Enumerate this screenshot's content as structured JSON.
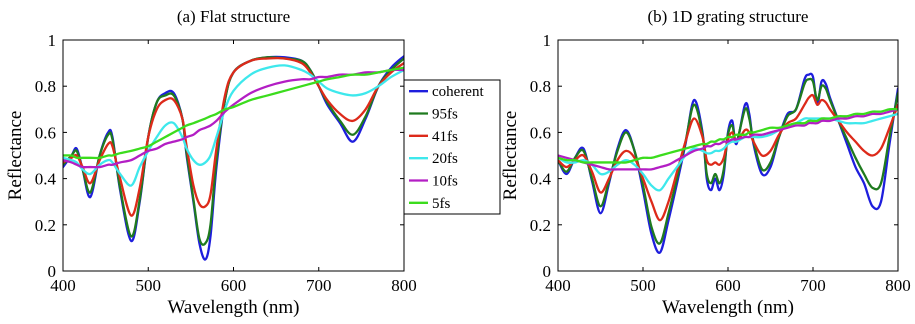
{
  "chart_data": [
    {
      "type": "line",
      "title": "(a) Flat structure",
      "xlabel": "Wavelength (nm)",
      "ylabel": "Reflectance",
      "xlim": [
        400,
        800
      ],
      "ylim": [
        0,
        1
      ],
      "xticks": [
        400,
        500,
        600,
        700,
        800
      ],
      "yticks": [
        0,
        0.2,
        0.4,
        0.6,
        0.8,
        1
      ],
      "ytick_labels": [
        "0",
        "0.2",
        "0.4",
        "0.6",
        "0.8",
        "1"
      ],
      "grid": false,
      "legend": "center-right",
      "x": [
        400,
        410,
        416,
        423,
        432,
        443,
        453,
        458,
        467,
        480,
        490,
        500,
        510,
        520,
        530,
        540,
        545,
        553,
        560,
        567,
        573,
        580,
        590,
        600,
        620,
        640,
        660,
        680,
        690,
        700,
        710,
        725,
        740,
        755,
        770,
        785,
        800
      ],
      "series": [
        {
          "name": "coherent",
          "color": "#1e1edd",
          "values": [
            0.45,
            0.5,
            0.53,
            0.44,
            0.32,
            0.5,
            0.6,
            0.58,
            0.35,
            0.13,
            0.3,
            0.58,
            0.73,
            0.77,
            0.77,
            0.66,
            0.5,
            0.3,
            0.12,
            0.05,
            0.15,
            0.45,
            0.74,
            0.86,
            0.91,
            0.925,
            0.925,
            0.91,
            0.87,
            0.8,
            0.72,
            0.64,
            0.56,
            0.66,
            0.8,
            0.88,
            0.93
          ]
        },
        {
          "name": "95fs",
          "color": "#1f7a1f",
          "values": [
            0.46,
            0.5,
            0.52,
            0.44,
            0.34,
            0.5,
            0.59,
            0.57,
            0.36,
            0.15,
            0.31,
            0.58,
            0.73,
            0.76,
            0.76,
            0.66,
            0.51,
            0.31,
            0.14,
            0.12,
            0.2,
            0.48,
            0.74,
            0.86,
            0.91,
            0.925,
            0.92,
            0.91,
            0.87,
            0.8,
            0.73,
            0.65,
            0.59,
            0.67,
            0.8,
            0.87,
            0.92
          ]
        },
        {
          "name": "41fs",
          "color": "#dd2a1a",
          "values": [
            0.47,
            0.49,
            0.5,
            0.45,
            0.38,
            0.48,
            0.55,
            0.54,
            0.4,
            0.24,
            0.36,
            0.58,
            0.7,
            0.74,
            0.74,
            0.66,
            0.54,
            0.37,
            0.29,
            0.28,
            0.33,
            0.53,
            0.76,
            0.86,
            0.91,
            0.92,
            0.92,
            0.9,
            0.86,
            0.8,
            0.74,
            0.68,
            0.65,
            0.7,
            0.8,
            0.86,
            0.9
          ]
        },
        {
          "name": "20fs",
          "color": "#3ee8ec",
          "values": [
            0.49,
            0.48,
            0.47,
            0.44,
            0.42,
            0.46,
            0.48,
            0.47,
            0.42,
            0.37,
            0.45,
            0.52,
            0.58,
            0.63,
            0.64,
            0.58,
            0.53,
            0.48,
            0.46,
            0.47,
            0.5,
            0.58,
            0.7,
            0.78,
            0.85,
            0.88,
            0.89,
            0.87,
            0.85,
            0.82,
            0.79,
            0.77,
            0.76,
            0.77,
            0.8,
            0.84,
            0.87
          ]
        },
        {
          "name": "10fs",
          "color": "#b31ec4",
          "values": [
            0.48,
            0.47,
            0.46,
            0.45,
            0.45,
            0.45,
            0.46,
            0.46,
            0.47,
            0.48,
            0.5,
            0.52,
            0.53,
            0.55,
            0.56,
            0.57,
            0.58,
            0.59,
            0.61,
            0.62,
            0.63,
            0.65,
            0.69,
            0.72,
            0.77,
            0.8,
            0.82,
            0.83,
            0.83,
            0.84,
            0.84,
            0.85,
            0.85,
            0.86,
            0.86,
            0.87,
            0.87
          ]
        },
        {
          "name": "5fs",
          "color": "#3bdc1d",
          "values": [
            0.5,
            0.5,
            0.49,
            0.49,
            0.49,
            0.49,
            0.5,
            0.5,
            0.51,
            0.52,
            0.53,
            0.54,
            0.56,
            0.58,
            0.6,
            0.62,
            0.63,
            0.64,
            0.65,
            0.66,
            0.67,
            0.68,
            0.7,
            0.71,
            0.74,
            0.76,
            0.78,
            0.8,
            0.81,
            0.82,
            0.83,
            0.84,
            0.85,
            0.85,
            0.86,
            0.87,
            0.88
          ]
        }
      ]
    },
    {
      "type": "line",
      "title": "(b) 1D grating structure",
      "xlabel": "Wavelength (nm)",
      "ylabel": "Reflectance",
      "xlim": [
        400,
        800
      ],
      "ylim": [
        0,
        1
      ],
      "xticks": [
        400,
        500,
        600,
        700,
        800
      ],
      "yticks": [
        0,
        0.2,
        0.4,
        0.6,
        0.8,
        1
      ],
      "ytick_labels": [
        "0",
        "0.2",
        "0.4",
        "0.6",
        "0.8",
        "1"
      ],
      "grid": false,
      "x": [
        400,
        410,
        420,
        430,
        440,
        450,
        460,
        470,
        480,
        490,
        500,
        510,
        520,
        530,
        540,
        550,
        560,
        570,
        575,
        580,
        585,
        590,
        595,
        600,
        605,
        610,
        620,
        625,
        630,
        640,
        650,
        660,
        670,
        680,
        690,
        695,
        700,
        705,
        710,
        715,
        720,
        730,
        740,
        750,
        760,
        770,
        780,
        790,
        800
      ],
      "series": [
        {
          "name": "coherent",
          "color": "#1e1edd",
          "values": [
            0.48,
            0.42,
            0.49,
            0.53,
            0.39,
            0.25,
            0.38,
            0.53,
            0.61,
            0.52,
            0.35,
            0.16,
            0.08,
            0.22,
            0.38,
            0.55,
            0.74,
            0.6,
            0.4,
            0.35,
            0.4,
            0.35,
            0.42,
            0.6,
            0.65,
            0.55,
            0.72,
            0.68,
            0.55,
            0.42,
            0.45,
            0.58,
            0.68,
            0.7,
            0.83,
            0.85,
            0.84,
            0.72,
            0.82,
            0.81,
            0.75,
            0.65,
            0.55,
            0.45,
            0.38,
            0.28,
            0.3,
            0.55,
            0.79
          ]
        },
        {
          "name": "95fs",
          "color": "#1f7a1f",
          "values": [
            0.48,
            0.43,
            0.49,
            0.52,
            0.4,
            0.28,
            0.39,
            0.52,
            0.6,
            0.52,
            0.37,
            0.19,
            0.12,
            0.25,
            0.4,
            0.56,
            0.72,
            0.59,
            0.42,
            0.38,
            0.42,
            0.38,
            0.44,
            0.59,
            0.63,
            0.56,
            0.7,
            0.66,
            0.56,
            0.44,
            0.47,
            0.58,
            0.67,
            0.7,
            0.81,
            0.83,
            0.82,
            0.74,
            0.8,
            0.79,
            0.74,
            0.65,
            0.57,
            0.49,
            0.42,
            0.36,
            0.38,
            0.58,
            0.77
          ]
        },
        {
          "name": "41fs",
          "color": "#dd2a1a",
          "values": [
            0.48,
            0.45,
            0.48,
            0.5,
            0.43,
            0.34,
            0.4,
            0.48,
            0.52,
            0.49,
            0.4,
            0.3,
            0.22,
            0.3,
            0.43,
            0.56,
            0.66,
            0.58,
            0.48,
            0.46,
            0.47,
            0.46,
            0.49,
            0.57,
            0.6,
            0.56,
            0.61,
            0.6,
            0.56,
            0.5,
            0.52,
            0.59,
            0.64,
            0.66,
            0.72,
            0.75,
            0.76,
            0.72,
            0.74,
            0.73,
            0.7,
            0.65,
            0.6,
            0.56,
            0.52,
            0.5,
            0.53,
            0.62,
            0.72
          ]
        },
        {
          "name": "20fs",
          "color": "#3ee8ec",
          "values": [
            0.49,
            0.47,
            0.47,
            0.48,
            0.46,
            0.42,
            0.43,
            0.46,
            0.48,
            0.46,
            0.42,
            0.37,
            0.35,
            0.4,
            0.45,
            0.5,
            0.53,
            0.52,
            0.51,
            0.51,
            0.52,
            0.52,
            0.53,
            0.55,
            0.56,
            0.56,
            0.58,
            0.58,
            0.58,
            0.58,
            0.59,
            0.61,
            0.63,
            0.64,
            0.66,
            0.66,
            0.66,
            0.66,
            0.66,
            0.66,
            0.66,
            0.65,
            0.64,
            0.64,
            0.64,
            0.65,
            0.66,
            0.67,
            0.68
          ]
        },
        {
          "name": "10fs",
          "color": "#b31ec4",
          "values": [
            0.5,
            0.49,
            0.48,
            0.47,
            0.46,
            0.45,
            0.44,
            0.44,
            0.44,
            0.44,
            0.44,
            0.44,
            0.45,
            0.46,
            0.48,
            0.5,
            0.52,
            0.53,
            0.54,
            0.54,
            0.55,
            0.55,
            0.56,
            0.56,
            0.57,
            0.57,
            0.58,
            0.58,
            0.59,
            0.59,
            0.6,
            0.61,
            0.62,
            0.63,
            0.63,
            0.64,
            0.64,
            0.64,
            0.65,
            0.65,
            0.65,
            0.66,
            0.66,
            0.67,
            0.67,
            0.68,
            0.68,
            0.69,
            0.7
          ]
        },
        {
          "name": "5fs",
          "color": "#3bdc1d",
          "values": [
            0.49,
            0.48,
            0.48,
            0.47,
            0.47,
            0.47,
            0.47,
            0.47,
            0.47,
            0.48,
            0.49,
            0.49,
            0.5,
            0.51,
            0.52,
            0.53,
            0.54,
            0.55,
            0.55,
            0.56,
            0.56,
            0.57,
            0.57,
            0.58,
            0.58,
            0.59,
            0.59,
            0.6,
            0.6,
            0.61,
            0.62,
            0.62,
            0.63,
            0.64,
            0.64,
            0.65,
            0.65,
            0.65,
            0.66,
            0.66,
            0.66,
            0.67,
            0.67,
            0.68,
            0.68,
            0.69,
            0.69,
            0.7,
            0.7
          ]
        }
      ]
    }
  ]
}
